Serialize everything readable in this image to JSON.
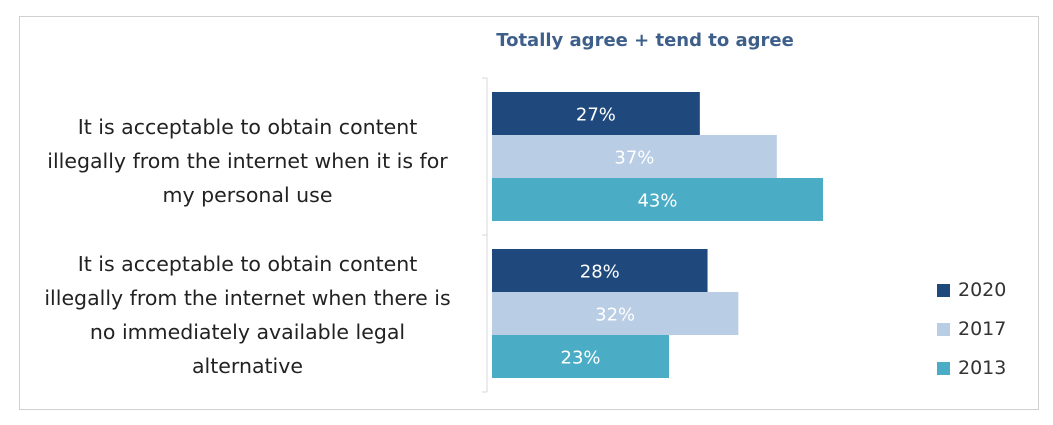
{
  "chart_data": {
    "type": "bar",
    "orientation": "horizontal",
    "title": "Totally agree + tend to agree",
    "categories": [
      "It is acceptable to obtain content illegally from the internet when it is for my personal use",
      "It is acceptable to obtain content illegally from the internet when there is no immediately available legal alternative"
    ],
    "category_lines": [
      [
        "It is acceptable to obtain content",
        "illegally from the internet when it is for",
        "my personal use"
      ],
      [
        "It is acceptable to obtain content",
        "illegally from the internet when there is",
        "no immediately available legal",
        "alternative"
      ]
    ],
    "series": [
      {
        "name": "2020",
        "values": [
          27,
          28
        ],
        "labels": [
          "27%",
          "28%"
        ],
        "color": "#1f497d"
      },
      {
        "name": "2017",
        "values": [
          37,
          32
        ],
        "labels": [
          "37%",
          "32%"
        ],
        "color": "#b9cde5"
      },
      {
        "name": "2013",
        "values": [
          43,
          23
        ],
        "labels": [
          "43%",
          "23%"
        ],
        "color": "#4bacc6"
      }
    ],
    "xlim": [
      0,
      43
    ],
    "grid": false,
    "legend_position": "bottom-right"
  }
}
